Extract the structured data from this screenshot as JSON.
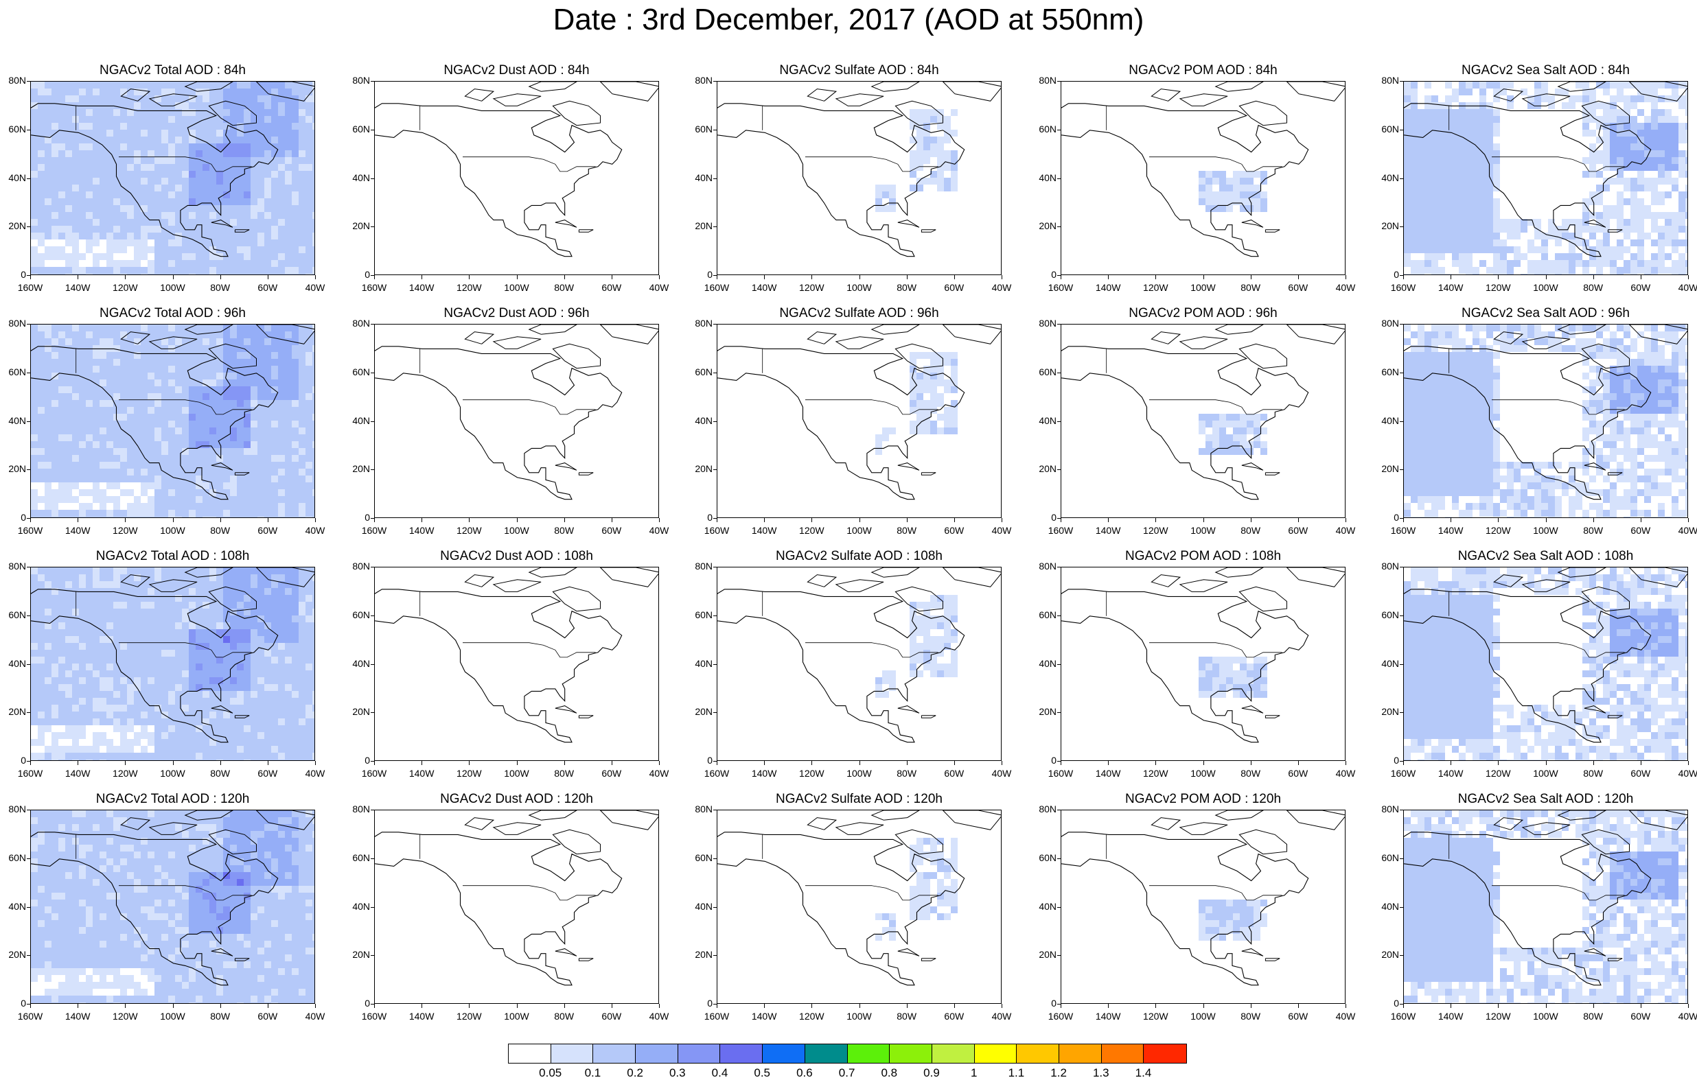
{
  "title": "Date : 3rd December, 2017 (AOD at 550nm)",
  "lat_labels": [
    "80N",
    "60N",
    "40N",
    "20N",
    "0"
  ],
  "lon_labels": [
    "160W",
    "140W",
    "120W",
    "100W",
    "80W",
    "60W",
    "40W"
  ],
  "panels": [
    [
      "NGACv2 Total AOD : 84h",
      "NGACv2 Dust AOD : 84h",
      "NGACv2 Sulfate AOD : 84h",
      "NGACv2 POM AOD : 84h",
      "NGACv2 Sea Salt AOD : 84h"
    ],
    [
      "NGACv2 Total AOD : 96h",
      "NGACv2 Dust AOD : 96h",
      "NGACv2 Sulfate AOD : 96h",
      "NGACv2 POM AOD : 96h",
      "NGACv2 Sea Salt AOD : 96h"
    ],
    [
      "NGACv2 Total AOD : 108h",
      "NGACv2 Dust AOD : 108h",
      "NGACv2 Sulfate AOD : 108h",
      "NGACv2 POM AOD : 108h",
      "NGACv2 Sea Salt AOD : 108h"
    ],
    [
      "NGACv2 Total AOD : 120h",
      "NGACv2 Dust AOD : 120h",
      "NGACv2 Sulfate AOD : 120h",
      "NGACv2 POM AOD : 120h",
      "NGACv2 Sea Salt  AOD : 120h"
    ]
  ],
  "colorbar": {
    "colors": [
      "#ffffff",
      "#d6e2fc",
      "#b5c9f9",
      "#95aef7",
      "#8596f5",
      "#6a6ef0",
      "#0f6ef5",
      "#008c8c",
      "#5cf00a",
      "#8cf00a",
      "#c0f040",
      "#ffff00",
      "#ffc800",
      "#ffa500",
      "#ff7800",
      "#ff2800"
    ],
    "labels": [
      "0.05",
      "0.1",
      "0.2",
      "0.3",
      "0.4",
      "0.5",
      "0.6",
      "0.7",
      "0.8",
      "0.9",
      "1",
      "1.1",
      "1.2",
      "1.3",
      "1.4"
    ]
  },
  "field_intensity": {
    "total": 0.25,
    "dust": 0.0,
    "sulfate": 0.04,
    "pom": 0.05,
    "seasalt": 0.18
  }
}
